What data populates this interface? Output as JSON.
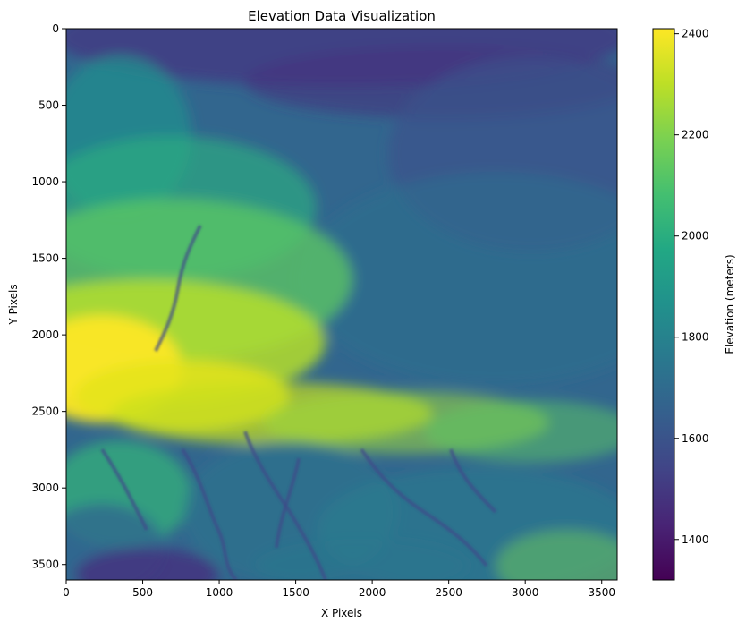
{
  "chart_data": {
    "type": "heatmap",
    "title": "Elevation Data Visualization",
    "xlabel": "X Pixels",
    "ylabel": "Y Pixels",
    "colorbar_label": "Elevation (meters)",
    "colormap": "viridis",
    "xlim": [
      0,
      3601
    ],
    "ylim": [
      3601,
      0
    ],
    "x_ticks": [
      0,
      500,
      1000,
      1500,
      2000,
      2500,
      3000,
      3500
    ],
    "y_ticks": [
      0,
      500,
      1000,
      1500,
      2000,
      2500,
      3000,
      3500
    ],
    "colorbar_range": [
      1320,
      2410
    ],
    "colorbar_ticks": [
      1400,
      1600,
      1800,
      2000,
      2200,
      2400
    ],
    "grid": false,
    "description_of_field": "High elevations (yellow) in the west-central band near y≈2000–2600, lower elevations (purple) along the north edge and in dissected valleys to the south-west and south-center."
  }
}
